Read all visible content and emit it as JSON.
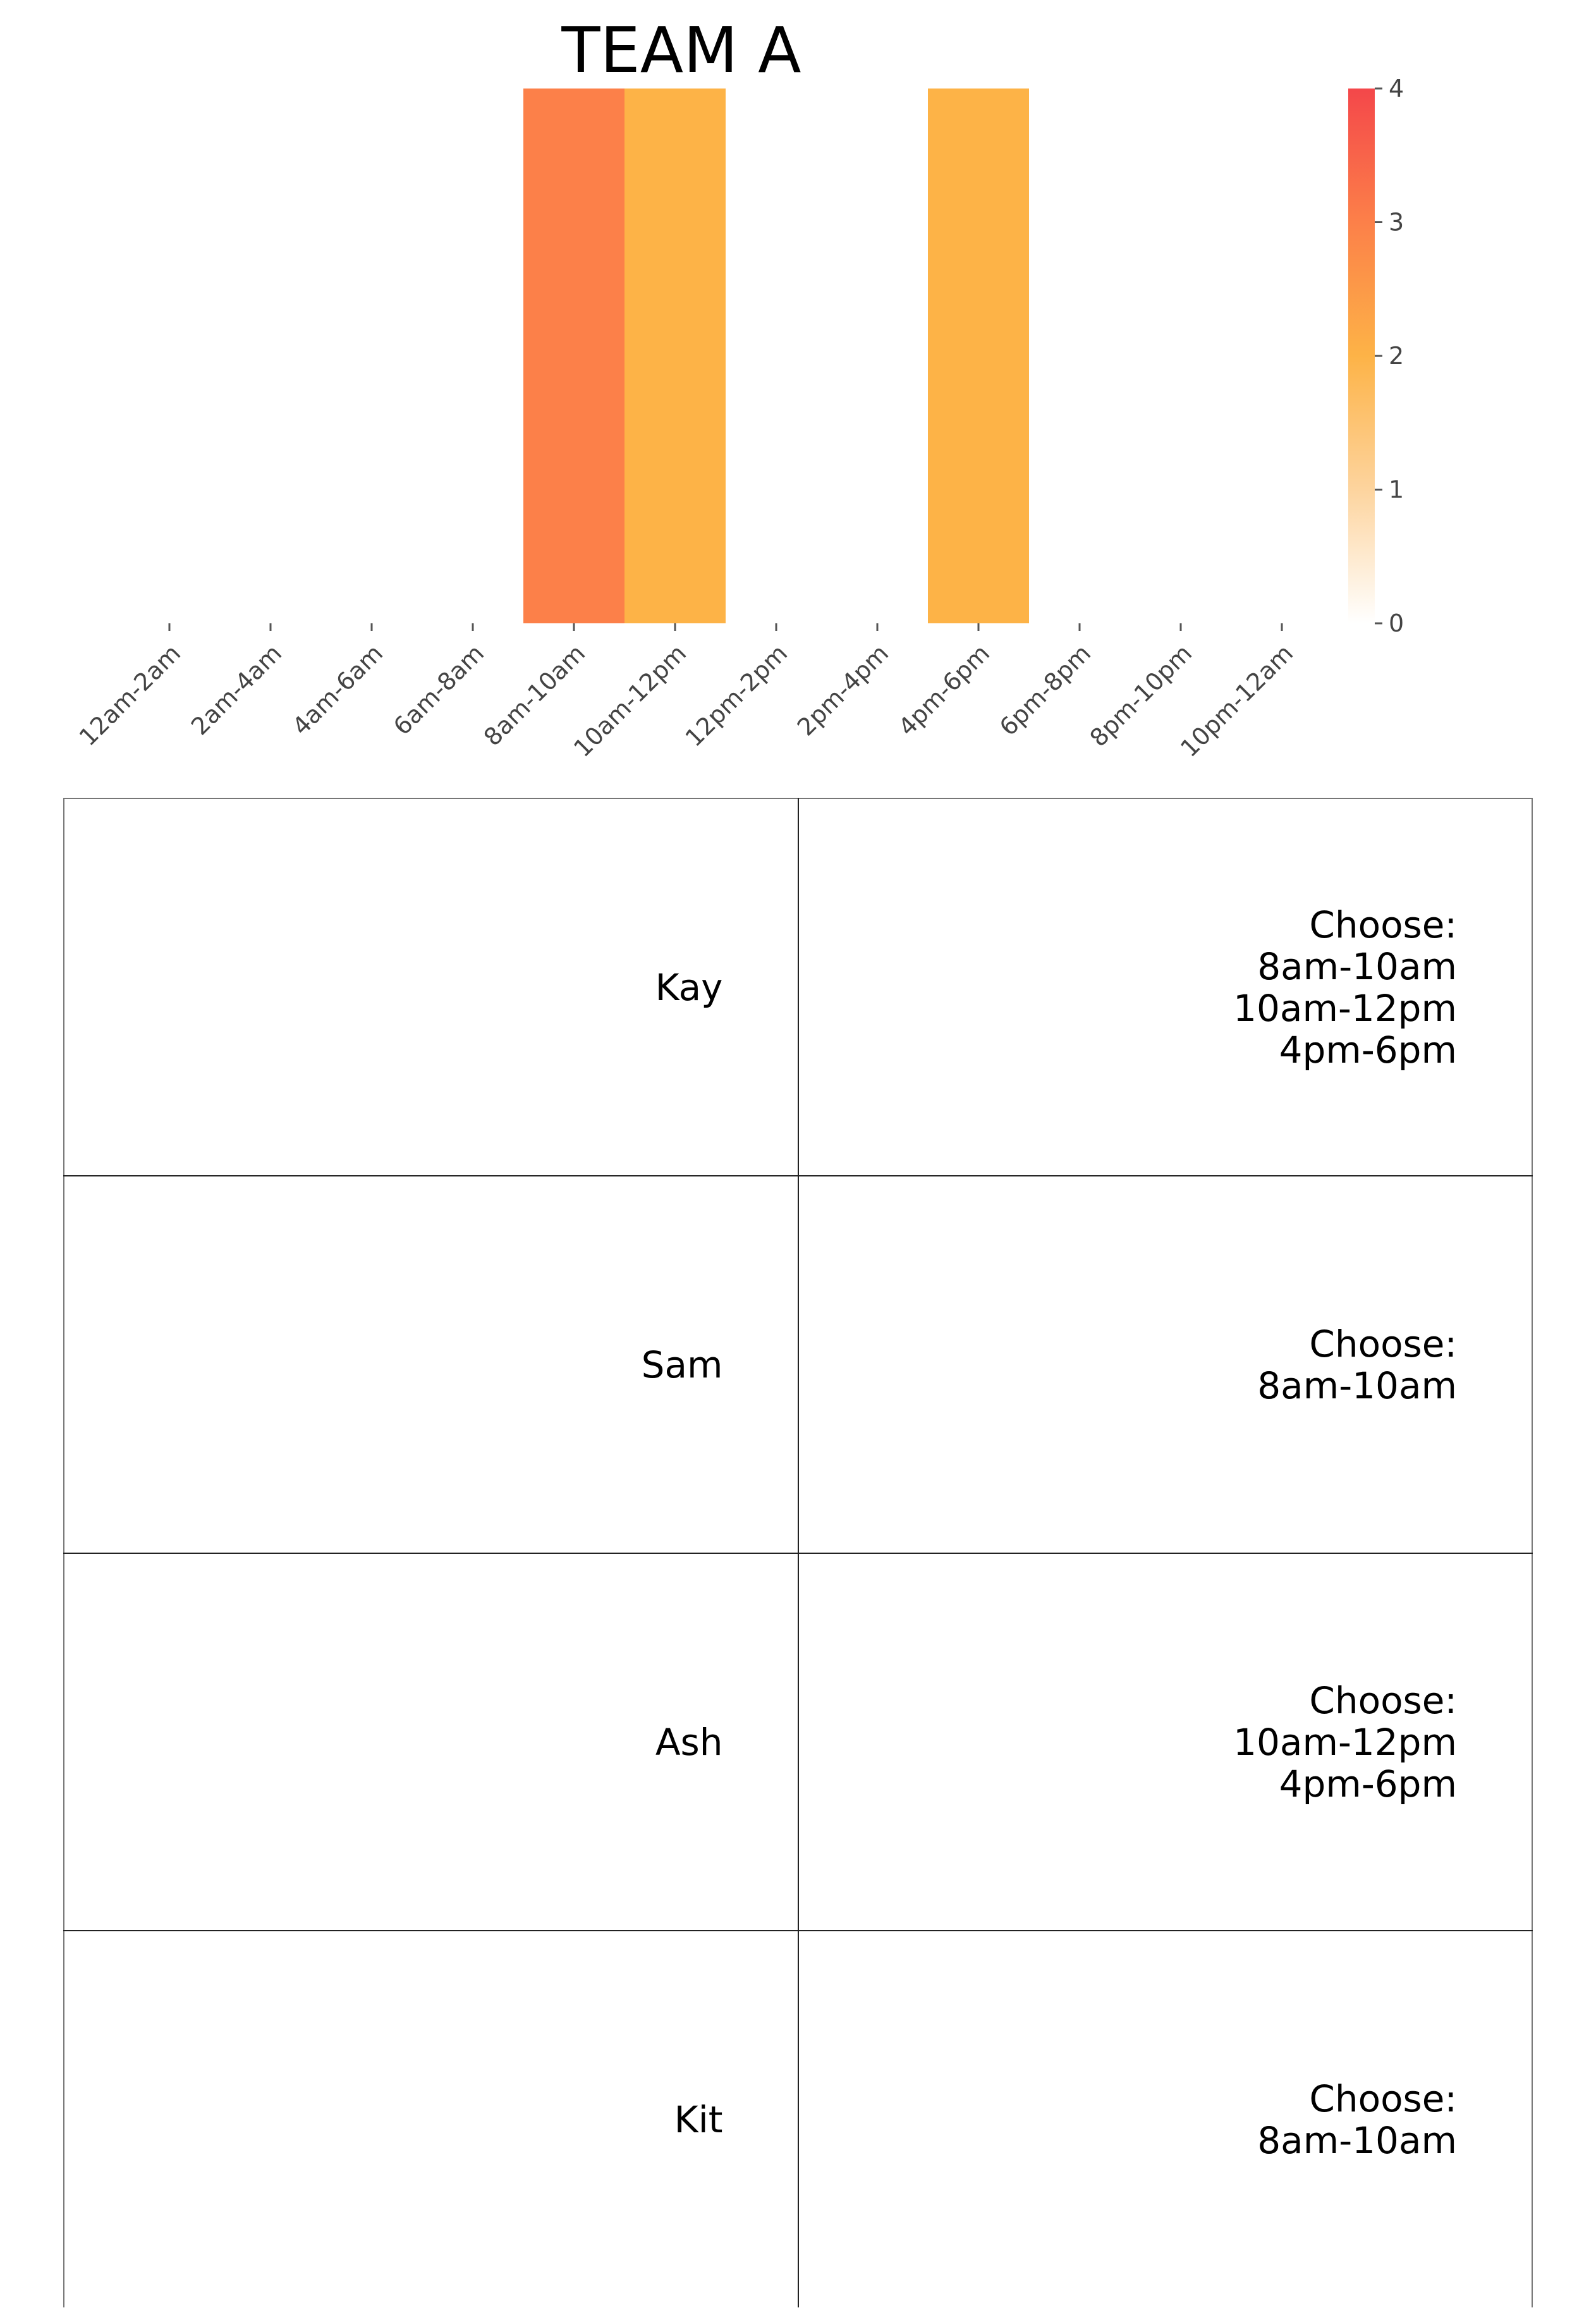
{
  "chart_data": {
    "type": "heatmap",
    "title": "TEAM A",
    "xlabel": "",
    "ylabel": "",
    "categories": [
      "12am-2am",
      "2am-4am",
      "4am-6am",
      "6am-8am",
      "8am-10am",
      "10am-12pm",
      "12pm-2pm",
      "2pm-4pm",
      "4pm-6pm",
      "6pm-8pm",
      "8pm-10pm",
      "10pm-12am"
    ],
    "values": [
      0,
      0,
      0,
      0,
      3,
      2,
      0,
      0,
      2,
      0,
      0,
      0
    ],
    "colorbar": {
      "min": 0,
      "max": 4,
      "ticks": [
        "0",
        "1",
        "2",
        "3",
        "4"
      ],
      "colors": [
        "#ffffff",
        "#fdd49e",
        "#fdb347",
        "#fc8049",
        "#f4474a"
      ]
    },
    "grid": false
  },
  "table": {
    "rows": [
      {
        "name": "Kay",
        "choose_label": "Choose:",
        "choices": [
          "8am-10am",
          "10am-12pm",
          "4pm-6pm"
        ]
      },
      {
        "name": "Sam",
        "choose_label": "Choose:",
        "choices": [
          "8am-10am"
        ]
      },
      {
        "name": "Ash",
        "choose_label": "Choose:",
        "choices": [
          "10am-12pm",
          "4pm-6pm"
        ]
      },
      {
        "name": "Kit",
        "choose_label": "Choose:",
        "choices": [
          "8am-10am"
        ]
      }
    ]
  }
}
